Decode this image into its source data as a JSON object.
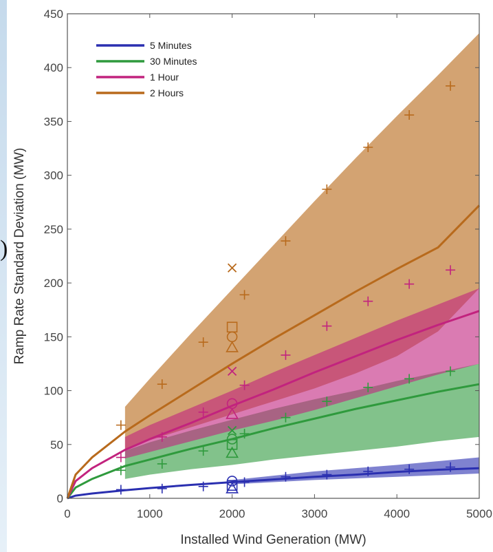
{
  "chart_data": {
    "type": "area",
    "xlabel": "Installed Wind Generation (MW)",
    "ylabel": "Ramp Rate Standard Deviation (MW)",
    "xlim": [
      0,
      5000
    ],
    "ylim": [
      0,
      450
    ],
    "xticks": [
      0,
      1000,
      2000,
      3000,
      4000,
      5000
    ],
    "yticks": [
      0,
      50,
      100,
      150,
      200,
      250,
      300,
      350,
      400,
      450
    ],
    "grid": false,
    "legend_position": "top-left",
    "series": [
      {
        "name": "5 Minutes",
        "color": "#2a2fb0",
        "fit_x": [
          0,
          100,
          300,
          700,
          1000,
          1500,
          2000,
          2500,
          3000,
          3500,
          4000,
          4500,
          5000
        ],
        "fit_y": [
          0,
          2.5,
          4.5,
          7.5,
          9.5,
          12.5,
          15,
          17.5,
          20,
          22,
          24.5,
          26.5,
          28
        ],
        "band_x": [
          2000,
          3000,
          4000,
          5000
        ],
        "band_lower": [
          13,
          17,
          20,
          23
        ],
        "band_upper": [
          17,
          25,
          31,
          38
        ],
        "points_plus": [
          [
            650,
            8
          ],
          [
            1150,
            9
          ],
          [
            1650,
            11
          ],
          [
            2150,
            15
          ],
          [
            2650,
            20
          ],
          [
            3150,
            22
          ],
          [
            3650,
            25
          ],
          [
            4150,
            27
          ],
          [
            4650,
            29
          ]
        ]
      },
      {
        "name": "30 Minutes",
        "color": "#2f9a3d",
        "fit_x": [
          0,
          100,
          300,
          700,
          1000,
          1500,
          2000,
          2500,
          3000,
          3500,
          4000,
          4500,
          5000
        ],
        "fit_y": [
          0,
          10,
          18,
          30,
          36,
          46,
          55,
          65,
          74,
          83,
          91,
          99,
          106
        ],
        "band_x": [
          700,
          1000,
          1500,
          2000,
          2500,
          3000,
          3500,
          4000,
          4500,
          5000
        ],
        "band_lower": [
          18,
          22,
          27,
          31,
          36,
          40,
          44,
          48,
          53,
          57
        ],
        "band_upper": [
          44,
          52,
          63,
          73,
          83,
          92,
          100,
          109,
          117,
          125
        ],
        "points_plus": [
          [
            650,
            26
          ],
          [
            1150,
            32
          ],
          [
            1650,
            44
          ],
          [
            2150,
            60
          ],
          [
            2650,
            75
          ],
          [
            3150,
            90
          ],
          [
            3650,
            103
          ],
          [
            4150,
            111
          ],
          [
            4650,
            118
          ]
        ]
      },
      {
        "name": "1 Hour",
        "color": "#c2237e",
        "fit_x": [
          0,
          100,
          300,
          700,
          1000,
          1500,
          2000,
          2500,
          3000,
          3500,
          4000,
          4500,
          5000
        ],
        "fit_y": [
          0,
          16,
          28,
          45,
          55,
          70,
          86,
          101,
          117,
          132,
          147,
          161,
          174
        ],
        "band_x": [
          700,
          1000,
          1500,
          2000,
          2500,
          3000,
          3500,
          4000,
          4500,
          5000
        ],
        "band_lower": [
          37,
          43,
          53,
          63,
          72,
          82,
          93,
          104,
          115,
          125
        ],
        "band_upper": [
          57,
          68,
          84,
          100,
          117,
          133,
          149,
          165,
          180,
          195
        ],
        "points_plus": [
          [
            650,
            38
          ],
          [
            1150,
            57
          ],
          [
            1650,
            80
          ],
          [
            2150,
            105
          ],
          [
            2650,
            133
          ],
          [
            3150,
            160
          ],
          [
            3650,
            183
          ],
          [
            4150,
            199
          ],
          [
            4650,
            212
          ]
        ]
      },
      {
        "name": "2 Hours",
        "color": "#b86a1c",
        "fit_x": [
          0,
          100,
          300,
          700,
          1000,
          1500,
          2000,
          2500,
          3000,
          3500,
          4000,
          4500,
          5000
        ],
        "fit_y": [
          0,
          22,
          38,
          62,
          77,
          101,
          125,
          148,
          170,
          192,
          213,
          233,
          272
        ],
        "band_x": [
          700,
          1000,
          1500,
          2000,
          2500,
          3000,
          3500,
          4000,
          4500,
          5000
        ],
        "band_lower": [
          45,
          54,
          66,
          78,
          90,
          102,
          116,
          132,
          155,
          195
        ],
        "band_upper": [
          85,
          111,
          153,
          194,
          235,
          276,
          316,
          355,
          393,
          432
        ],
        "points_plus": [
          [
            650,
            68
          ],
          [
            1150,
            106
          ],
          [
            1650,
            145
          ],
          [
            2150,
            189
          ],
          [
            2650,
            239
          ],
          [
            3150,
            287
          ],
          [
            3650,
            326
          ],
          [
            4150,
            356
          ],
          [
            4650,
            383
          ]
        ]
      }
    ],
    "special_markers": [
      {
        "x": 2000,
        "y": 214,
        "marker": "x",
        "color": "#b86a1c"
      },
      {
        "x": 2000,
        "y": 159,
        "marker": "square",
        "color": "#b86a1c"
      },
      {
        "x": 2000,
        "y": 150,
        "marker": "circle",
        "color": "#b86a1c"
      },
      {
        "x": 2000,
        "y": 140,
        "marker": "triangle",
        "color": "#b86a1c"
      },
      {
        "x": 2000,
        "y": 118,
        "marker": "x",
        "color": "#c2237e"
      },
      {
        "x": 2000,
        "y": 88,
        "marker": "circle",
        "color": "#c2237e"
      },
      {
        "x": 2000,
        "y": 78,
        "marker": "triangle",
        "color": "#c2237e"
      },
      {
        "x": 2000,
        "y": 63,
        "marker": "x",
        "color": "#2f9a3d"
      },
      {
        "x": 2000,
        "y": 55,
        "marker": "circle",
        "color": "#2f9a3d"
      },
      {
        "x": 2000,
        "y": 50,
        "marker": "square",
        "color": "#2f9a3d"
      },
      {
        "x": 2000,
        "y": 42,
        "marker": "triangle",
        "color": "#2f9a3d"
      },
      {
        "x": 2000,
        "y": 16,
        "marker": "circle",
        "color": "#2a2fb0"
      },
      {
        "x": 2000,
        "y": 12,
        "marker": "square",
        "color": "#2a2fb0"
      },
      {
        "x": 2000,
        "y": 9,
        "marker": "triangle",
        "color": "#2a2fb0"
      }
    ]
  },
  "left_edge_glyph": ")"
}
